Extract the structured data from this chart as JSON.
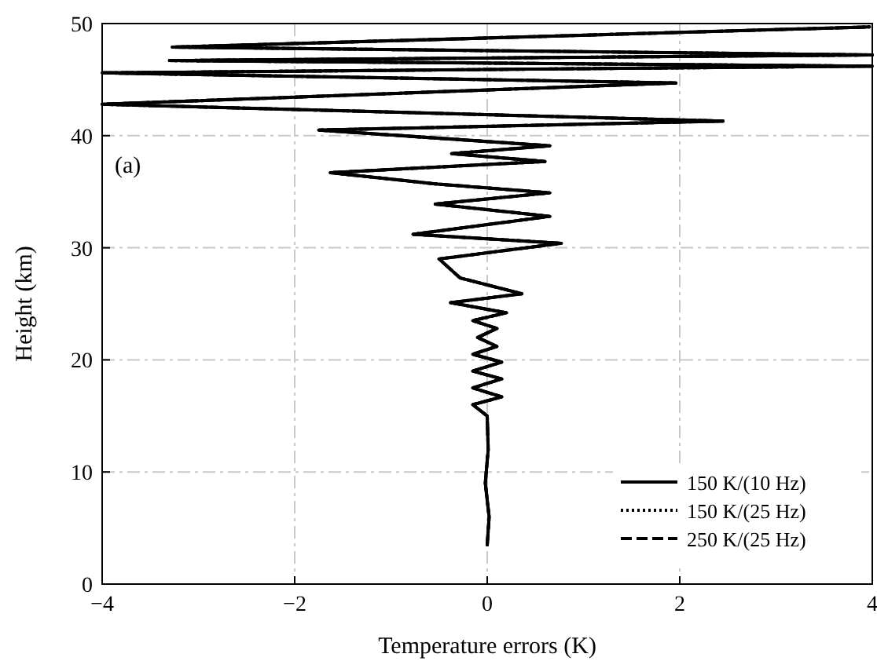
{
  "chart_data": {
    "type": "line",
    "xlabel": "Temperature errors (K)",
    "ylabel": "Height (km)",
    "annotations": [
      "(a)"
    ],
    "xlim": [
      -4,
      4
    ],
    "xticks": [
      {
        "value": -4,
        "label": "−4"
      },
      {
        "value": -2,
        "label": "−2"
      },
      0,
      2,
      4
    ],
    "ylim": [
      0,
      50
    ],
    "yticks": [
      0,
      10,
      20,
      30,
      40,
      50
    ],
    "grid": true,
    "legend": "bottom right",
    "series": [
      {
        "name": "150 K/(10 Hz)",
        "color": "#000000",
        "line_style": "solid",
        "x": [
          0,
          0.02,
          -0.02,
          0.01,
          0,
          -0.15,
          0.15,
          -0.15,
          0.15,
          -0.15,
          0.15,
          -0.15,
          0.1,
          -0.1,
          0.1,
          -0.15,
          0.2,
          -0.38,
          0.36,
          -0.28,
          -0.5,
          0.77,
          -0.77,
          0.65,
          -0.54,
          0.65,
          -0.54,
          -1.63,
          0.6,
          -0.37,
          0.65,
          -1.75,
          2.45,
          -4,
          1.96,
          -4,
          4,
          -3.3,
          4,
          -3.27,
          3.97
        ],
        "values": [
          3.5,
          6,
          9,
          12,
          15,
          16,
          16.7,
          17.5,
          18.3,
          19,
          19.8,
          20.5,
          21.2,
          22,
          22.8,
          23.5,
          24.2,
          25.1,
          25.9,
          27.3,
          29,
          30.4,
          31.2,
          32.8,
          33.9,
          34.9,
          35.7,
          36.7,
          37.7,
          38.4,
          39.1,
          40.5,
          41.3,
          42.8,
          44.7,
          45.6,
          46.2,
          46.7,
          47.2,
          47.9,
          49.7
        ]
      },
      {
        "name": "150 K/(25 Hz)",
        "color": "#000000",
        "line_style": "dotted",
        "x": [
          0,
          0.02,
          -0.02,
          0.01,
          0,
          -0.15,
          0.15,
          -0.15,
          0.15,
          -0.15,
          0.15,
          -0.15,
          0.1,
          -0.1,
          0.1,
          -0.15,
          0.2,
          -0.38,
          0.36,
          -0.28,
          -0.5,
          0.77,
          -0.77,
          0.65,
          -0.54,
          0.65,
          -0.54,
          -1.63,
          0.6,
          -0.37,
          0.65,
          -1.75,
          2.45,
          -4,
          1.96,
          -4,
          4,
          -3.3,
          4,
          -3.27,
          3.97
        ],
        "values": [
          3.5,
          6,
          9,
          12,
          15,
          16,
          16.7,
          17.5,
          18.3,
          19,
          19.8,
          20.5,
          21.2,
          22,
          22.8,
          23.5,
          24.2,
          25.1,
          25.9,
          27.3,
          29,
          30.4,
          31.2,
          32.8,
          33.9,
          34.9,
          35.7,
          36.7,
          37.7,
          38.4,
          39.1,
          40.5,
          41.3,
          42.8,
          44.7,
          45.6,
          46.2,
          46.7,
          47.2,
          47.9,
          49.7
        ]
      },
      {
        "name": "250 K/(25 Hz)",
        "color": "#000000",
        "line_style": "dashed",
        "x": [
          0,
          0.02,
          -0.02,
          0.01,
          0,
          -0.15,
          0.15,
          -0.15,
          0.15,
          -0.15,
          0.15,
          -0.15,
          0.1,
          -0.1,
          0.1,
          -0.15,
          0.2,
          -0.38,
          0.36,
          -0.28,
          -0.5,
          0.77,
          -0.77,
          0.65,
          -0.54,
          0.65,
          -0.54,
          -1.63,
          0.6,
          -0.37,
          0.65,
          -1.75,
          2.45,
          -4,
          1.96,
          -4,
          4,
          -3.3,
          4,
          -3.27,
          3.97
        ],
        "values": [
          3.5,
          6,
          9,
          12,
          15,
          16,
          16.7,
          17.5,
          18.3,
          19,
          19.8,
          20.5,
          21.2,
          22,
          22.8,
          23.5,
          24.2,
          25.1,
          25.9,
          27.3,
          29,
          30.4,
          31.2,
          32.8,
          33.9,
          34.9,
          35.7,
          36.7,
          37.7,
          38.4,
          39.1,
          40.5,
          41.3,
          42.8,
          44.7,
          45.6,
          46.2,
          46.7,
          47.2,
          47.9,
          49.7
        ]
      }
    ]
  }
}
